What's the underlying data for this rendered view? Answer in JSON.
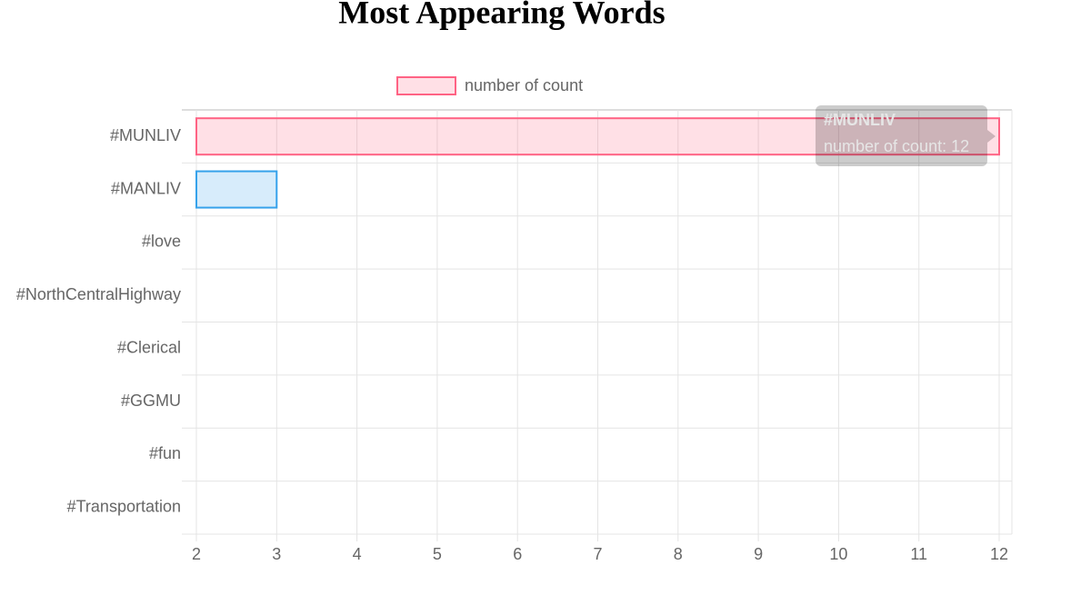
{
  "chart_data": {
    "type": "hbar",
    "title": "Most Appearing Words",
    "categories": [
      "#MUNLIV",
      "#MANLIV",
      "#love",
      "#NorthCentralHighway",
      "#Clerical",
      "#GGMU",
      "#fun",
      "#Transportation"
    ],
    "series": [
      {
        "name": "number of count",
        "values": [
          12,
          3,
          2,
          2,
          2,
          2,
          2,
          2
        ],
        "colors": [
          "#ff6384",
          "#36a2eb",
          "#ffce56",
          "#4bc0c0",
          "#9966ff",
          "#ff9f40",
          "#ff6384",
          "#36a2eb"
        ]
      }
    ],
    "xlim": [
      2,
      12
    ],
    "xticks": [
      2,
      3,
      4,
      5,
      6,
      7,
      8,
      9,
      10,
      11,
      12
    ],
    "grid": true,
    "tooltip": {
      "title": "#MUNLIV",
      "label": "number of count: 12"
    }
  }
}
